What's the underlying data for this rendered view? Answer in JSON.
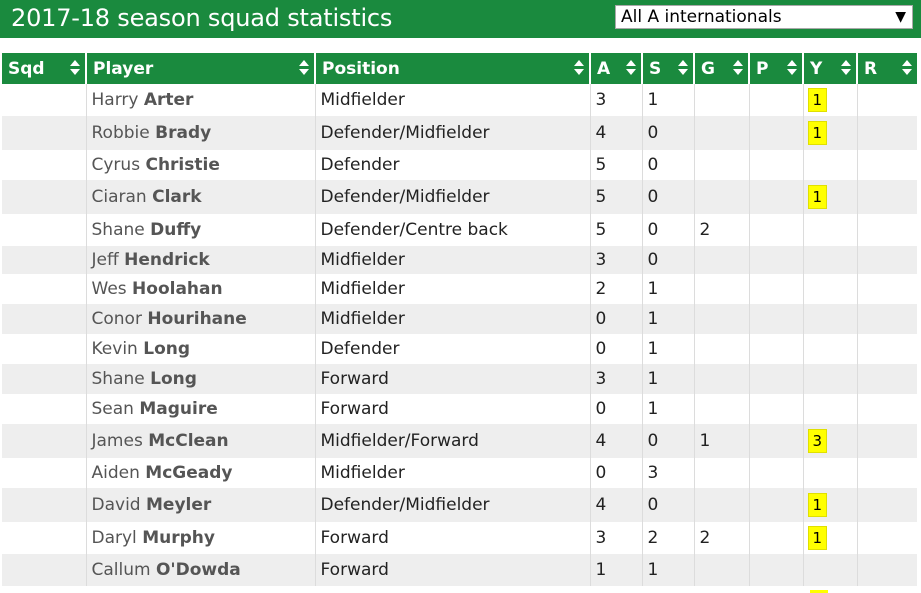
{
  "header": {
    "title": "2017-18 season squad statistics",
    "filter_value": "All A internationals",
    "filter_arrow": "▼"
  },
  "colors": {
    "header_green": "#1a8a3e",
    "yellow_card": "#ffff00",
    "row_alt": "#eeeeee"
  },
  "columns": [
    "Sqd",
    "Player",
    "Position",
    "A",
    "S",
    "G",
    "P",
    "Y",
    "R"
  ],
  "rows": [
    {
      "sqd": "",
      "first": "Harry",
      "last": "Arter",
      "position": "Midfielder",
      "a": "3",
      "s": "1",
      "g": "",
      "p": "",
      "y": "1",
      "r": ""
    },
    {
      "sqd": "",
      "first": "Robbie",
      "last": "Brady",
      "position": "Defender/Midfielder",
      "a": "4",
      "s": "0",
      "g": "",
      "p": "",
      "y": "1",
      "r": ""
    },
    {
      "sqd": "",
      "first": "Cyrus",
      "last": "Christie",
      "position": "Defender",
      "a": "5",
      "s": "0",
      "g": "",
      "p": "",
      "y": "",
      "r": ""
    },
    {
      "sqd": "",
      "first": "Ciaran",
      "last": "Clark",
      "position": "Defender/Midfielder",
      "a": "5",
      "s": "0",
      "g": "",
      "p": "",
      "y": "1",
      "r": ""
    },
    {
      "sqd": "",
      "first": "Shane",
      "last": "Duffy",
      "position": "Defender/Centre back",
      "a": "5",
      "s": "0",
      "g": "2",
      "p": "",
      "y": "",
      "r": ""
    },
    {
      "sqd": "",
      "first": "Jeff",
      "last": "Hendrick",
      "position": "Midfielder",
      "a": "3",
      "s": "0",
      "g": "",
      "p": "",
      "y": "",
      "r": ""
    },
    {
      "sqd": "",
      "first": "Wes",
      "last": "Hoolahan",
      "position": "Midfielder",
      "a": "2",
      "s": "1",
      "g": "",
      "p": "",
      "y": "",
      "r": ""
    },
    {
      "sqd": "",
      "first": "Conor",
      "last": "Hourihane",
      "position": "Midfielder",
      "a": "0",
      "s": "1",
      "g": "",
      "p": "",
      "y": "",
      "r": ""
    },
    {
      "sqd": "",
      "first": "Kevin",
      "last": "Long",
      "position": "Defender",
      "a": "0",
      "s": "1",
      "g": "",
      "p": "",
      "y": "",
      "r": ""
    },
    {
      "sqd": "",
      "first": "Shane",
      "last": "Long",
      "position": "Forward",
      "a": "3",
      "s": "1",
      "g": "",
      "p": "",
      "y": "",
      "r": ""
    },
    {
      "sqd": "",
      "first": "Sean",
      "last": "Maguire",
      "position": "Forward",
      "a": "0",
      "s": "1",
      "g": "",
      "p": "",
      "y": "",
      "r": ""
    },
    {
      "sqd": "",
      "first": "James",
      "last": "McClean",
      "position": "Midfielder/Forward",
      "a": "4",
      "s": "0",
      "g": "1",
      "p": "",
      "y": "3",
      "r": ""
    },
    {
      "sqd": "",
      "first": "Aiden",
      "last": "McGeady",
      "position": "Midfielder",
      "a": "0",
      "s": "3",
      "g": "",
      "p": "",
      "y": "",
      "r": ""
    },
    {
      "sqd": "",
      "first": "David",
      "last": "Meyler",
      "position": "Defender/Midfielder",
      "a": "4",
      "s": "0",
      "g": "",
      "p": "",
      "y": "1",
      "r": ""
    },
    {
      "sqd": "",
      "first": "Daryl",
      "last": "Murphy",
      "position": "Forward",
      "a": "3",
      "s": "2",
      "g": "2",
      "p": "",
      "y": "1",
      "r": ""
    },
    {
      "sqd": "",
      "first": "Callum",
      "last": "O'Dowda",
      "position": "Forward",
      "a": "1",
      "s": "1",
      "g": "",
      "p": "",
      "y": "",
      "r": ""
    }
  ]
}
